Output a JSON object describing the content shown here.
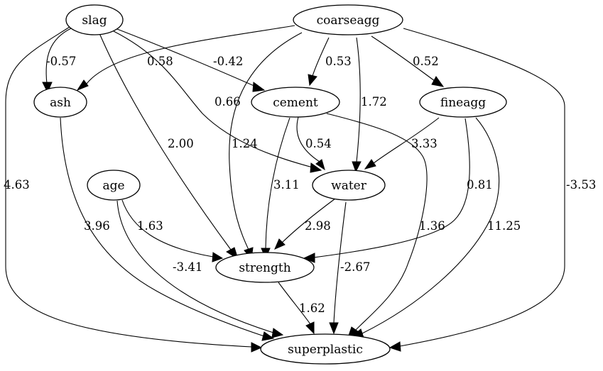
{
  "nodes": {
    "slag": "slag",
    "coarseagg": "coarseagg",
    "ash": "ash",
    "cement": "cement",
    "fineagg": "fineagg",
    "age": "age",
    "water": "water",
    "strength": "strength",
    "superplastic": "superplastic"
  },
  "edges": [
    {
      "from": "slag",
      "to": "ash",
      "weight": "-0.57"
    },
    {
      "from": "slag",
      "to": "superplastic",
      "weight": "4.63"
    },
    {
      "from": "slag",
      "to": "strength",
      "weight": "2.00"
    },
    {
      "from": "slag",
      "to": "water",
      "weight": "0.66"
    },
    {
      "from": "slag",
      "to": "cement",
      "weight": "-0.42"
    },
    {
      "from": "coarseagg",
      "to": "ash",
      "weight": "0.58"
    },
    {
      "from": "coarseagg",
      "to": "cement",
      "weight": "0.53"
    },
    {
      "from": "coarseagg",
      "to": "fineagg",
      "weight": "0.52"
    },
    {
      "from": "coarseagg",
      "to": "water",
      "weight": "1.72"
    },
    {
      "from": "coarseagg",
      "to": "strength",
      "weight": "1.24"
    },
    {
      "from": "coarseagg",
      "to": "superplastic",
      "weight": "-3.53"
    },
    {
      "from": "cement",
      "to": "water",
      "weight": "0.54"
    },
    {
      "from": "cement",
      "to": "strength",
      "weight": "3.11"
    },
    {
      "from": "cement",
      "to": "superplastic",
      "weight": "1.36"
    },
    {
      "from": "fineagg",
      "to": "water",
      "weight": "3.33"
    },
    {
      "from": "fineagg",
      "to": "strength",
      "weight": "0.81"
    },
    {
      "from": "fineagg",
      "to": "superplastic",
      "weight": "11.25"
    },
    {
      "from": "ash",
      "to": "superplastic",
      "weight": "3.96"
    },
    {
      "from": "age",
      "to": "strength",
      "weight": "1.63"
    },
    {
      "from": "age",
      "to": "superplastic",
      "weight": "-3.41"
    },
    {
      "from": "water",
      "to": "strength",
      "weight": "2.98"
    },
    {
      "from": "water",
      "to": "superplastic",
      "weight": "-2.67"
    },
    {
      "from": "strength",
      "to": "superplastic",
      "weight": "1.62"
    }
  ]
}
